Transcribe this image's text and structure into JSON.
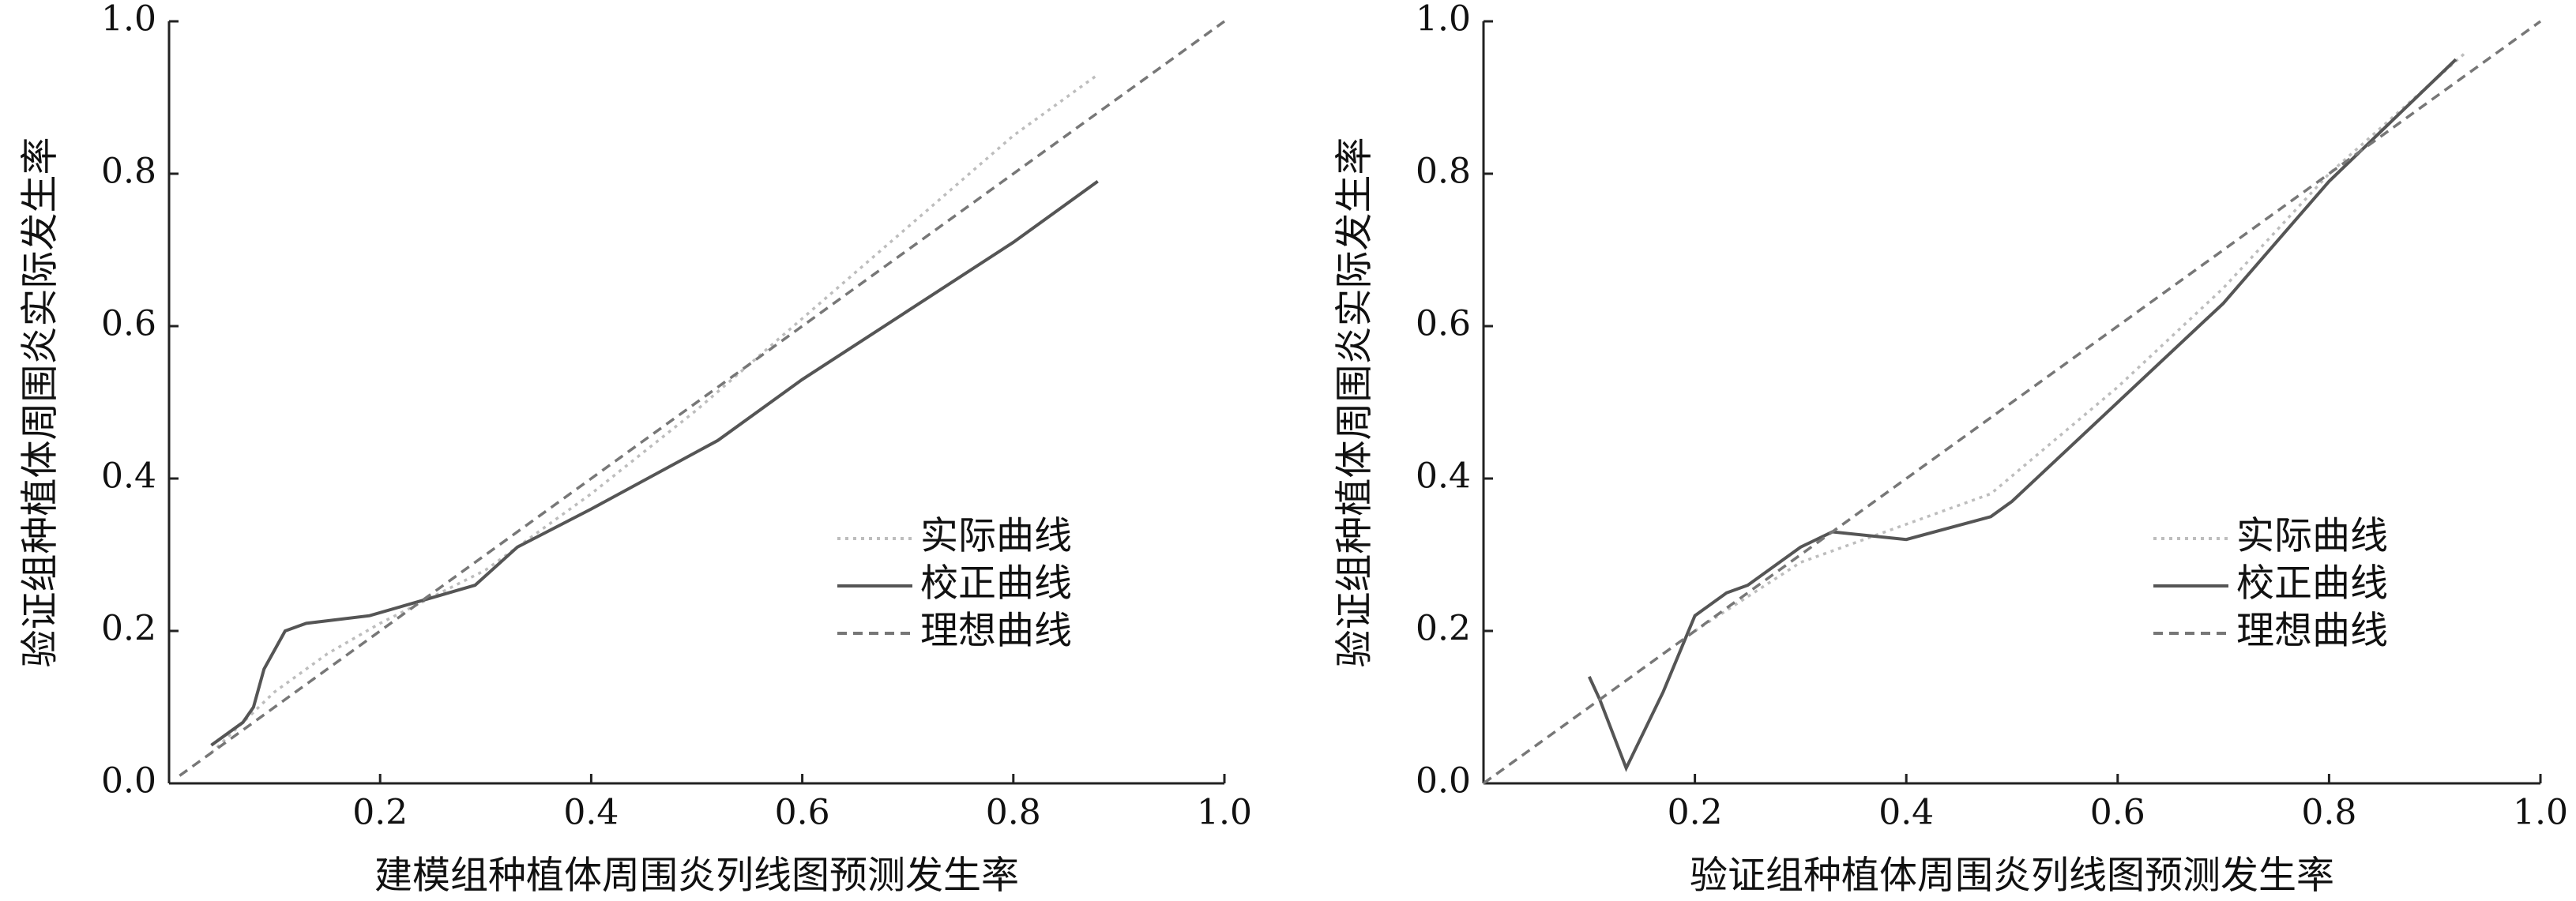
{
  "chart_data": [
    {
      "type": "line",
      "x_label": "建模组种植体周围炎列线图预测发生率",
      "y_label": "验证组种植体周围炎实际发生率",
      "xlim": [
        0,
        1
      ],
      "ylim": [
        0,
        1
      ],
      "xticks": [
        0.2,
        0.4,
        0.6,
        0.8,
        {
          "value": 1,
          "label": "1.0"
        }
      ],
      "yticks": [
        {
          "value": 0,
          "label": "0.0"
        },
        0.2,
        0.4,
        0.6,
        0.8,
        {
          "value": 1,
          "label": "1.0"
        }
      ],
      "legend": "right",
      "series": [
        {
          "name": "实际曲线",
          "color": "#bdbdbd",
          "style": "dotted",
          "x": [
            0.04,
            0.1,
            0.15,
            0.2,
            0.3,
            0.4,
            0.5,
            0.6,
            0.7,
            0.8,
            0.88
          ],
          "values": [
            0.04,
            0.12,
            0.17,
            0.21,
            0.28,
            0.38,
            0.49,
            0.61,
            0.73,
            0.85,
            0.93
          ]
        },
        {
          "name": "校正曲线",
          "color": "#555555",
          "style": "solid",
          "x": [
            0.04,
            0.07,
            0.08,
            0.09,
            0.11,
            0.13,
            0.19,
            0.24,
            0.29,
            0.33,
            0.4,
            0.52,
            0.6,
            0.7,
            0.8,
            0.88
          ],
          "values": [
            0.05,
            0.08,
            0.1,
            0.15,
            0.2,
            0.21,
            0.22,
            0.24,
            0.26,
            0.31,
            0.36,
            0.45,
            0.53,
            0.62,
            0.71,
            0.79
          ]
        },
        {
          "name": "理想曲线",
          "color": "#777777",
          "style": "dashed",
          "x": [
            0.01,
            1
          ],
          "values": [
            0.01,
            1
          ]
        }
      ]
    },
    {
      "type": "line",
      "x_label": "验证组种植体周围炎列线图预测发生率",
      "y_label": "验证组种植体周围炎实际发生率",
      "xlim": [
        0,
        1
      ],
      "ylim": [
        0,
        1
      ],
      "xticks": [
        0.2,
        0.4,
        0.6,
        0.8,
        {
          "value": 1,
          "label": "1.0"
        }
      ],
      "yticks": [
        {
          "value": 0,
          "label": "0.0"
        },
        0.2,
        0.4,
        0.6,
        0.8,
        {
          "value": 1,
          "label": "1.0"
        }
      ],
      "legend": "right",
      "series": [
        {
          "name": "实际曲线",
          "color": "#bdbdbd",
          "style": "dotted",
          "x": [
            0.2,
            0.3,
            0.4,
            0.48,
            0.6,
            0.7,
            0.8,
            0.93
          ],
          "values": [
            0.2,
            0.29,
            0.34,
            0.38,
            0.52,
            0.65,
            0.8,
            0.96
          ]
        },
        {
          "name": "校正曲线",
          "color": "#555555",
          "style": "solid",
          "x": [
            0.1,
            0.11,
            0.135,
            0.17,
            0.2,
            0.23,
            0.25,
            0.3,
            0.33,
            0.4,
            0.48,
            0.5,
            0.6,
            0.7,
            0.8,
            0.92
          ],
          "values": [
            0.14,
            0.11,
            0.02,
            0.12,
            0.22,
            0.25,
            0.26,
            0.31,
            0.33,
            0.32,
            0.35,
            0.37,
            0.5,
            0.63,
            0.79,
            0.95
          ]
        },
        {
          "name": "理想曲线",
          "color": "#777777",
          "style": "dashed",
          "x": [
            0,
            1
          ],
          "values": [
            0,
            1
          ]
        }
      ]
    }
  ]
}
